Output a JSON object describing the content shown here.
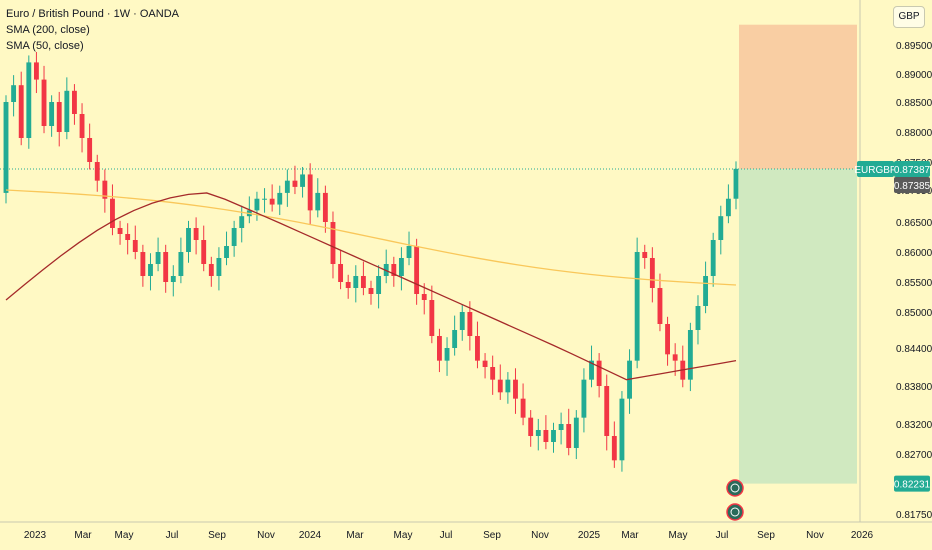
{
  "title": "Euro / British Pound · 1W · OANDA",
  "indicators": [
    "SMA (200, close)",
    "SMA (50, close)"
  ],
  "currency": "GBP",
  "symbol_label": "EURGBP",
  "price_labels": {
    "last": "0.87387",
    "sma": "0.87385",
    "stop": "0.82231"
  },
  "colors": {
    "up": "#22ab94",
    "down": "#f23645",
    "sma200": "#f9c75a",
    "sma50": "#a52a2a",
    "background": "#fff9c4",
    "target_zone": "#f8c9a0",
    "stop_zone": "#cde8c0"
  },
  "chart_data": {
    "type": "candlestick",
    "y_axis": {
      "ticks": [
        0.8175,
        0.827,
        0.832,
        0.838,
        0.844,
        0.85,
        0.855,
        0.86,
        0.865,
        0.8705,
        0.875,
        0.88,
        0.885,
        0.89,
        0.895
      ],
      "tick_labels": [
        "0.81750",
        "0.82700",
        "0.83200",
        "0.83800",
        "0.84400",
        "0.85000",
        "0.85500",
        "0.86000",
        "0.86500",
        "0.87050",
        "0.87500",
        "0.88000",
        "0.88500",
        "0.89000",
        "0.89500"
      ],
      "range": [
        0.8155,
        0.9005
      ]
    },
    "x_axis": {
      "tick_labels": [
        "2023",
        "Mar",
        "May",
        "Jul",
        "Sep",
        "Nov",
        "2024",
        "Mar",
        "May",
        "Jul",
        "Sep",
        "Nov",
        "2025",
        "Mar",
        "May",
        "Jul",
        "Sep",
        "Nov",
        "2026"
      ]
    },
    "approx_weekly_closes": {
      "2023": [
        0.885,
        0.888,
        0.879,
        0.892,
        0.889,
        0.881,
        0.885,
        0.88,
        0.887,
        0.883,
        0.879,
        0.875,
        0.872,
        0.869,
        0.864,
        0.863,
        0.862,
        0.86,
        0.856,
        0.858,
        0.86,
        0.855,
        0.856,
        0.86,
        0.864,
        0.862,
        0.858,
        0.856,
        0.859,
        0.861,
        0.864,
        0.866,
        0.867,
        0.869,
        0.869,
        0.868,
        0.87,
        0.872,
        0.871,
        0.873,
        0.867,
        0.87
      ],
      "2024": [
        0.865,
        0.858,
        0.855,
        0.854,
        0.856,
        0.854,
        0.853,
        0.856,
        0.858,
        0.856,
        0.859,
        0.861,
        0.853,
        0.852,
        0.846,
        0.842,
        0.844,
        0.847,
        0.85,
        0.846,
        0.842,
        0.841,
        0.839,
        0.837,
        0.839,
        0.836,
        0.833,
        0.83,
        0.831,
        0.829,
        0.831,
        0.832
      ],
      "2025": [
        0.828,
        0.833,
        0.839,
        0.842,
        0.838,
        0.83,
        0.826,
        0.836,
        0.842,
        0.86,
        0.859,
        0.854,
        0.848,
        0.843,
        0.842,
        0.839,
        0.847,
        0.851,
        0.856,
        0.862,
        0.866,
        0.869,
        0.8739
      ]
    },
    "sma_200": {
      "from": 0.8705,
      "to": 0.8545
    },
    "sma_50": {
      "from": 0.852,
      "peak": 0.87,
      "to": 0.842
    },
    "position": {
      "entry": 0.87387,
      "target": 0.8985,
      "stop": 0.82231
    },
    "grid": false
  }
}
